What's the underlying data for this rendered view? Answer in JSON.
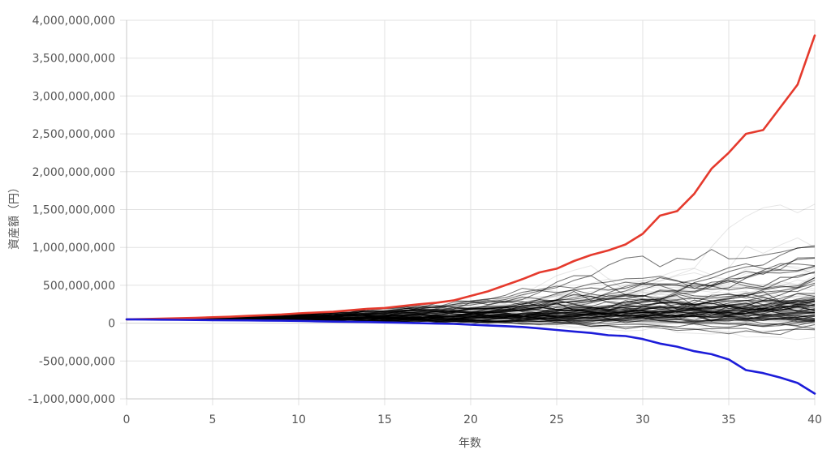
{
  "chart_data": {
    "type": "line",
    "xlabel": "年数",
    "ylabel": "資産額（円）",
    "xlim": [
      0,
      40
    ],
    "ylim": [
      -1000000000,
      4000000000
    ],
    "x_ticks": [
      0,
      5,
      10,
      15,
      20,
      25,
      30,
      35,
      40
    ],
    "x_tick_labels": [
      "0",
      "5",
      "10",
      "15",
      "20",
      "25",
      "30",
      "35",
      "40"
    ],
    "y_ticks": [
      -1000000000,
      -500000000,
      0,
      500000000,
      1000000000,
      1500000000,
      2000000000,
      2500000000,
      3000000000,
      3500000000,
      4000000000
    ],
    "y_tick_labels": [
      "-1,000,000,000",
      "-500,000,000",
      "0",
      "500,000,000",
      "1,000,000,000",
      "1,500,000,000",
      "2,000,000,000",
      "2,500,000,000",
      "3,000,000,000",
      "3,500,000,000",
      "4,000,000,000"
    ],
    "grid": true,
    "x": [
      0,
      1,
      2,
      3,
      4,
      5,
      6,
      7,
      8,
      9,
      10,
      11,
      12,
      13,
      14,
      15,
      16,
      17,
      18,
      19,
      20,
      21,
      22,
      23,
      24,
      25,
      26,
      27,
      28,
      29,
      30,
      31,
      32,
      33,
      34,
      35,
      36,
      37,
      38,
      39,
      40
    ],
    "series": [
      {
        "color": "#e53a2d",
        "values": [
          50000000,
          55000000,
          60000000,
          65000000,
          70000000,
          78000000,
          85000000,
          95000000,
          105000000,
          115000000,
          130000000,
          140000000,
          150000000,
          170000000,
          190000000,
          200000000,
          225000000,
          250000000,
          270000000,
          300000000,
          360000000,
          420000000,
          500000000,
          580000000,
          670000000,
          720000000,
          820000000,
          900000000,
          960000000,
          1040000000,
          1180000000,
          1420000000,
          1480000000,
          1710000000,
          2040000000,
          2250000000,
          2500000000,
          2550000000,
          2850000000,
          3150000000,
          3800000000
        ]
      },
      {
        "color": "#1c1cd9",
        "values": [
          50000000,
          48000000,
          46000000,
          44000000,
          42000000,
          40000000,
          38000000,
          36000000,
          34000000,
          32000000,
          30000000,
          25000000,
          20000000,
          18000000,
          15000000,
          10000000,
          5000000,
          0,
          -5000000,
          -10000000,
          -20000000,
          -30000000,
          -40000000,
          -50000000,
          -70000000,
          -90000000,
          -110000000,
          -130000000,
          -160000000,
          -170000000,
          -210000000,
          -270000000,
          -310000000,
          -370000000,
          -410000000,
          -480000000,
          -620000000,
          -660000000,
          -720000000,
          -790000000,
          -930000000
        ]
      }
    ],
    "simulation_paths": {
      "count": 500,
      "start_value": 50000000,
      "color": "#000000",
      "opacity": 0.1
    }
  }
}
